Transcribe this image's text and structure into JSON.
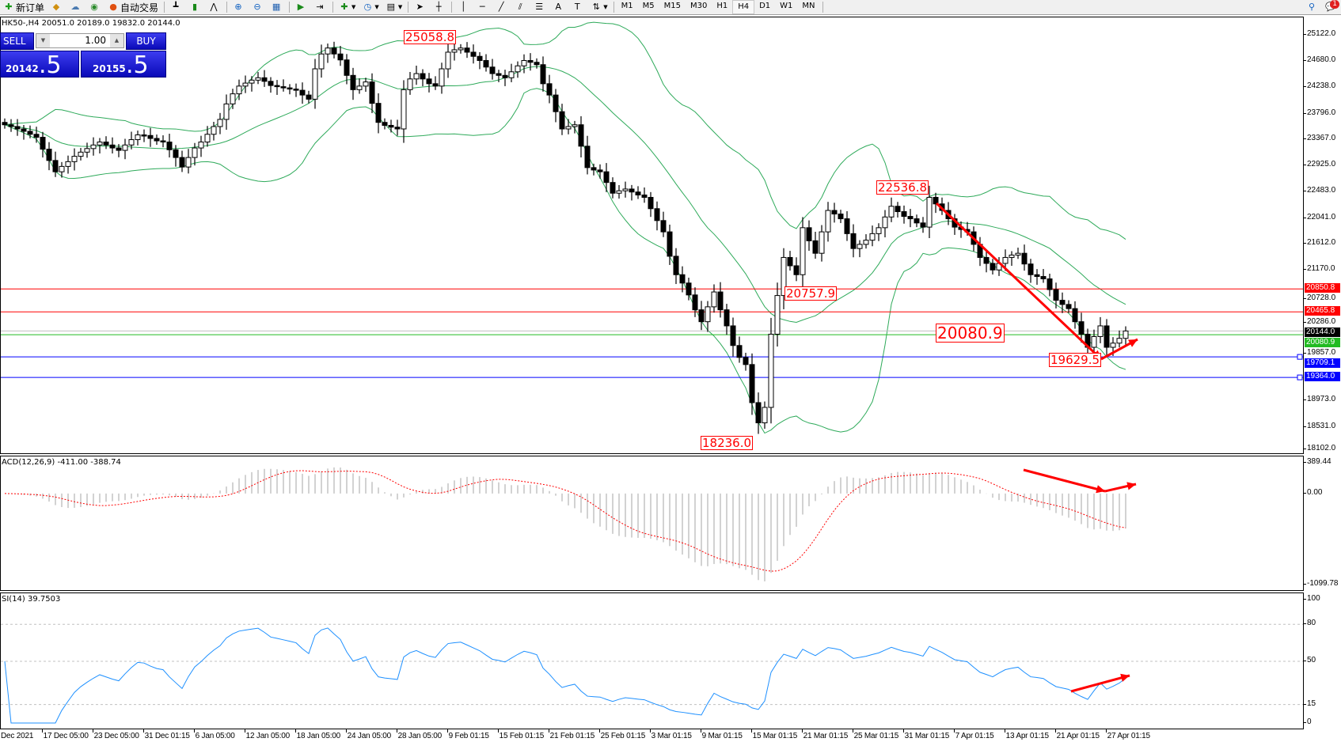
{
  "toolbar": {
    "new_order": "新订单",
    "auto_trading": "自动交易",
    "timeframes": [
      "M1",
      "M5",
      "M15",
      "M30",
      "H1",
      "H4",
      "D1",
      "W1",
      "MN"
    ],
    "active_timeframe": "H4",
    "notification_count": "1"
  },
  "chart": {
    "info": "HK50-,H4  20051.0 20189.0 19832.0 20144.0",
    "trade_panel": {
      "sell_label": "SELL",
      "buy_label": "BUY",
      "lot": "1.00",
      "sell_price_main": "20142",
      "sell_price_big": ".5",
      "buy_price_main": "20155",
      "buy_price_big": ".5"
    },
    "price_axis": [
      "25122.0",
      "24680.0",
      "24238.0",
      "23796.0",
      "23367.0",
      "22925.0",
      "22483.0",
      "22041.0",
      "21612.0",
      "21170.0",
      "20728.0",
      "20286.0",
      "19857.0",
      "18973.0",
      "18531.0",
      "18102.0"
    ],
    "levels": [
      {
        "value": "20850.8",
        "color": "#ff0000"
      },
      {
        "value": "20465.8",
        "color": "#ff0000"
      },
      {
        "value": "20144.0",
        "color": "#000000"
      },
      {
        "value": "20080.9",
        "color": "#22bb22"
      },
      {
        "value": "19709.1",
        "color": "#0000ff"
      },
      {
        "value": "19364.0",
        "color": "#0000ff"
      }
    ],
    "price_labels": [
      "25058.8",
      "22536.8",
      "20757.9",
      "18236.0",
      "19629.5",
      "20080.9"
    ],
    "band_color": "#2eaa5a",
    "arrow_color": "#ff0000"
  },
  "macd": {
    "title": "ACD(12,26,9) -411.00 -388.74",
    "axis": [
      "389.44",
      "0.00",
      "-1099.78"
    ]
  },
  "rsi": {
    "title": "SI(14) 39.7503",
    "axis": [
      "100",
      "80",
      "50",
      "15",
      "0"
    ]
  },
  "time_axis": [
    "Dec 2021",
    "17 Dec 05:00",
    "23 Dec 05:00",
    "31 Dec 01:15",
    "6 Jan 05:00",
    "12 Jan 05:00",
    "18 Jan 05:00",
    "24 Jan 05:00",
    "28 Jan 05:00",
    "9 Feb 01:15",
    "15 Feb 01:15",
    "21 Feb 01:15",
    "25 Feb 01:15",
    "3 Mar 01:15",
    "9 Mar 01:15",
    "15 Mar 01:15",
    "21 Mar 01:15",
    "25 Mar 01:15",
    "31 Mar 01:15",
    "7 Apr 01:15",
    "13 Apr 01:15",
    "21 Apr 01:15",
    "27 Apr 01:15"
  ],
  "chart_data": {
    "type": "candlestick",
    "symbol": "HK50-",
    "timeframe": "H4",
    "ylim": [
      18102.0,
      25122.0
    ],
    "closes": [
      23610,
      23580,
      23540,
      23500,
      23450,
      23400,
      23200,
      23010,
      22820,
      22910,
      22990,
      23080,
      23150,
      23210,
      23270,
      23320,
      23270,
      23220,
      23180,
      23270,
      23360,
      23440,
      23430,
      23380,
      23340,
      23320,
      23190,
      23060,
      22900,
      23060,
      23220,
      23320,
      23450,
      23580,
      23700,
      23960,
      24130,
      24260,
      24310,
      24360,
      24400,
      24340,
      24270,
      24250,
      24230,
      24210,
      24190,
      24110,
      24040,
      24550,
      24800,
      24900,
      24800,
      24700,
      24440,
      24200,
      24260,
      24330,
      23970,
      23650,
      23600,
      23570,
      23540,
      24200,
      24380,
      24470,
      24380,
      24300,
      24260,
      24550,
      24830,
      24870,
      24900,
      24830,
      24760,
      24690,
      24580,
      24470,
      24440,
      24400,
      24500,
      24600,
      24690,
      24660,
      24620,
      24300,
      24110,
      23830,
      23540,
      23580,
      23610,
      23250,
      22890,
      22850,
      22820,
      22640,
      22460,
      22500,
      22530,
      22480,
      22430,
      22390,
      22200,
      22000,
      21810,
      21400,
      21090,
      20950,
      20750,
      20500,
      20300,
      20550,
      20800,
      20500,
      20230,
      19900,
      19700,
      19580,
      18940,
      18600,
      18860,
      20090,
      20740,
      21380,
      21240,
      21090,
      21880,
      21660,
      21450,
      21810,
      22170,
      22110,
      22030,
      21780,
      21530,
      21600,
      21670,
      21780,
      21880,
      22060,
      22240,
      22150,
      22070,
      22030,
      21960,
      21890,
      22390,
      22280,
      22170,
      22030,
      21890,
      21850,
      21810,
      21600,
      21380,
      21280,
      21170,
      21280,
      21380,
      21420,
      21450,
      21270,
      21090,
      21060,
      21020,
      20840,
      20660,
      20590,
      20520,
      20300,
      20090,
      19870,
      20050,
      20230,
      19870,
      19940,
      20020,
      20144
    ],
    "macd_range": [
      -1099.78,
      389.44
    ],
    "rsi_levels": [
      80,
      50,
      15
    ]
  }
}
